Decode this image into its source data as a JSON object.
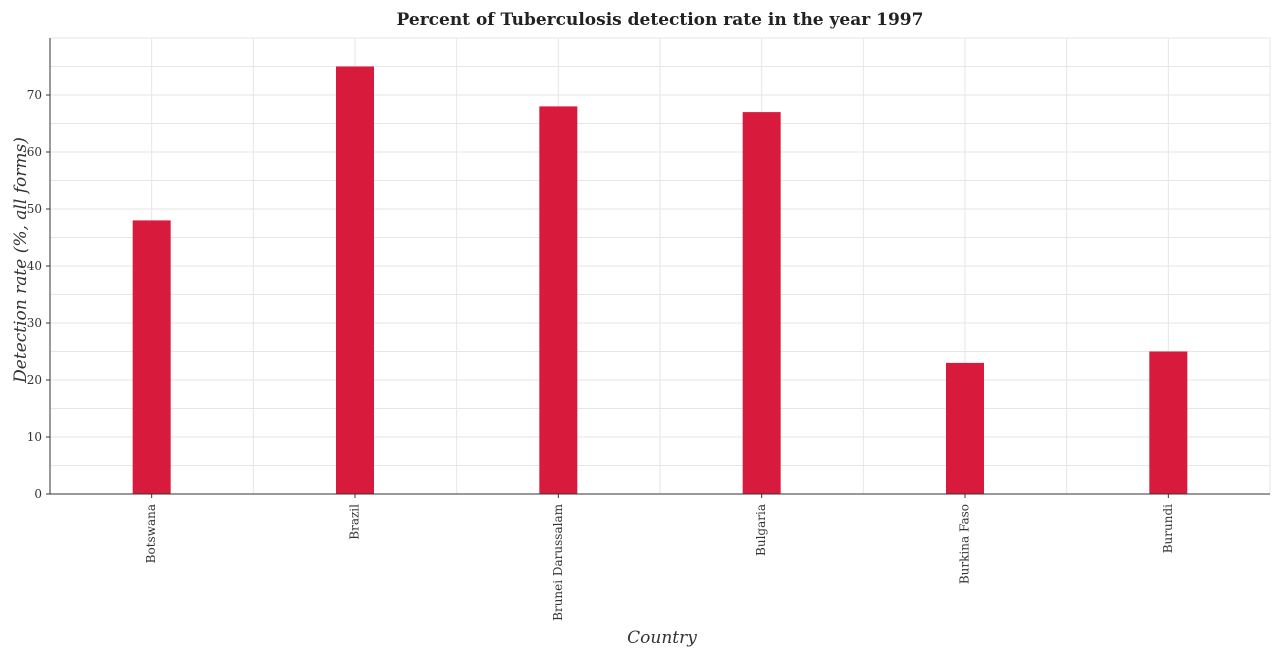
{
  "chart_data": {
    "type": "bar",
    "title": "Percent of Tuberculosis detection rate in the year 1997",
    "xlabel": "Country",
    "ylabel": "Detection rate (%, all forms)",
    "categories": [
      "Botswana",
      "Brazil",
      "Brunei Darussalam",
      "Bulgaria",
      "Burkina Faso",
      "Burundi"
    ],
    "values": [
      48,
      75,
      68,
      67,
      23,
      25
    ],
    "ylim": [
      0,
      80
    ],
    "yticks": [
      0,
      10,
      20,
      30,
      40,
      50,
      60,
      70
    ],
    "grid": true,
    "bar_color": "#d81b3c"
  }
}
